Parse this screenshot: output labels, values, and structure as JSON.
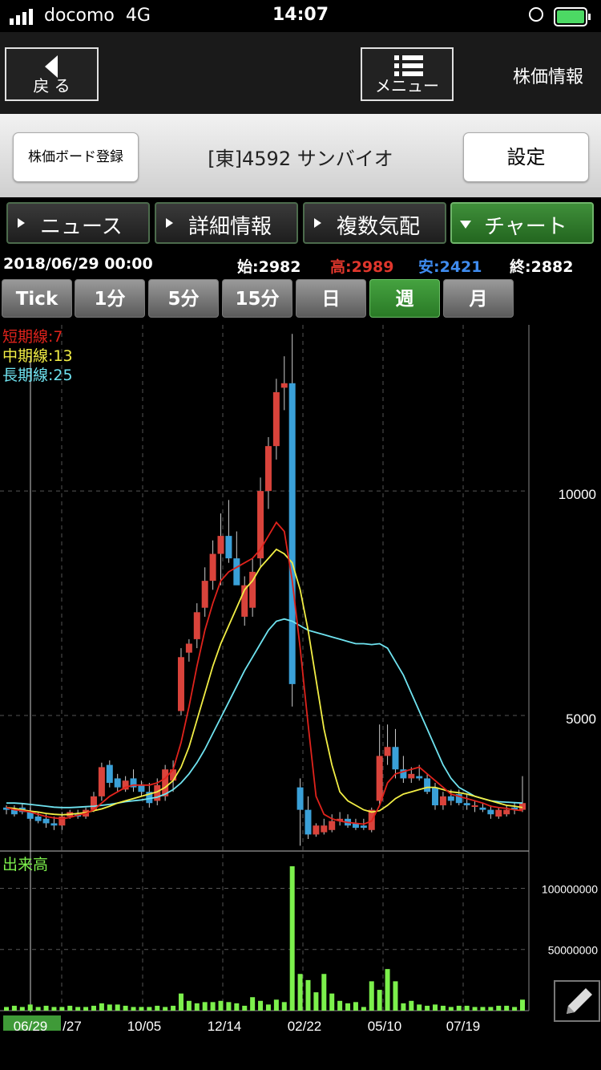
{
  "status_bar": {
    "carrier": "docomo",
    "network": "4G",
    "time": "14:07"
  },
  "nav": {
    "back_label": "戻 る",
    "menu_label": "メニュー",
    "title": "株価情報"
  },
  "stock": {
    "register_label": "株価ボード登録",
    "name": "[東]4592 サンバイオ",
    "settings_label": "設定"
  },
  "tabs": [
    {
      "label": "ニュース",
      "active": false
    },
    {
      "label": "詳細情報",
      "active": false
    },
    {
      "label": "複数気配",
      "active": false
    },
    {
      "label": "チャート",
      "active": true
    }
  ],
  "ohlc": {
    "date": "2018/06/29 00:00",
    "open": "始:2982",
    "high": "高:2989",
    "low": "安:2421",
    "close": "終:2882"
  },
  "periods": [
    {
      "label": "Tick",
      "active": false
    },
    {
      "label": "1分",
      "active": false
    },
    {
      "label": "5分",
      "active": false
    },
    {
      "label": "15分",
      "active": false
    },
    {
      "label": "日",
      "active": false
    },
    {
      "label": "週",
      "active": true
    },
    {
      "label": "月",
      "active": false
    }
  ],
  "colors": {
    "up": "#d9433b",
    "down": "#3aa0d8",
    "ma_short": "#e0231c",
    "ma_mid": "#f2ee45",
    "ma_long": "#6fe3f0",
    "volume": "#7cf04c",
    "accent": "#3f9a38"
  },
  "chart_data": {
    "type": "candlestick",
    "legend": [
      "短期線:7",
      "中期線:13",
      "長期線:25"
    ],
    "y_ticks": [
      10000,
      5000
    ],
    "ylim": [
      2000,
      13700
    ],
    "x_ticks": [
      "06/29",
      "/27",
      "10/05",
      "12/14",
      "02/22",
      "05/10",
      "07/19"
    ],
    "candles": [
      {
        "o": 2950,
        "h": 3000,
        "l": 2800,
        "c": 2900
      },
      {
        "o": 2900,
        "h": 3000,
        "l": 2750,
        "c": 2800
      },
      {
        "o": 2950,
        "h": 3050,
        "l": 2800,
        "c": 2850
      },
      {
        "o": 2850,
        "h": 2950,
        "l": 2650,
        "c": 2700
      },
      {
        "o": 2750,
        "h": 2850,
        "l": 2600,
        "c": 2650
      },
      {
        "o": 2700,
        "h": 2800,
        "l": 2500,
        "c": 2600
      },
      {
        "o": 2600,
        "h": 2750,
        "l": 2450,
        "c": 2550
      },
      {
        "o": 2550,
        "h": 2850,
        "l": 2450,
        "c": 2750
      },
      {
        "o": 2750,
        "h": 2900,
        "l": 2700,
        "c": 2850
      },
      {
        "o": 2800,
        "h": 2900,
        "l": 2700,
        "c": 2750
      },
      {
        "o": 2750,
        "h": 2950,
        "l": 2700,
        "c": 2900
      },
      {
        "o": 2900,
        "h": 3300,
        "l": 2850,
        "c": 3200
      },
      {
        "o": 3200,
        "h": 3950,
        "l": 3100,
        "c": 3850
      },
      {
        "o": 3900,
        "h": 4000,
        "l": 3400,
        "c": 3500
      },
      {
        "o": 3600,
        "h": 3700,
        "l": 3300,
        "c": 3400
      },
      {
        "o": 3350,
        "h": 3650,
        "l": 3300,
        "c": 3550
      },
      {
        "o": 3600,
        "h": 3800,
        "l": 3300,
        "c": 3400
      },
      {
        "o": 3450,
        "h": 3550,
        "l": 3200,
        "c": 3300
      },
      {
        "o": 3300,
        "h": 3500,
        "l": 2950,
        "c": 3050
      },
      {
        "o": 3100,
        "h": 3600,
        "l": 3000,
        "c": 3450
      },
      {
        "o": 3200,
        "h": 3900,
        "l": 3100,
        "c": 3800
      },
      {
        "o": 3550,
        "h": 4000,
        "l": 3300,
        "c": 3800
      },
      {
        "o": 5100,
        "h": 6500,
        "l": 5000,
        "c": 6300
      },
      {
        "o": 6400,
        "h": 6700,
        "l": 6200,
        "c": 6600
      },
      {
        "o": 6700,
        "h": 7500,
        "l": 6500,
        "c": 7300
      },
      {
        "o": 7400,
        "h": 8300,
        "l": 7200,
        "c": 8000
      },
      {
        "o": 8000,
        "h": 8900,
        "l": 7800,
        "c": 8600
      },
      {
        "o": 8600,
        "h": 9500,
        "l": 7900,
        "c": 9000
      },
      {
        "o": 9000,
        "h": 9800,
        "l": 8400,
        "c": 8500
      },
      {
        "o": 8500,
        "h": 9100,
        "l": 8000,
        "c": 7900
      },
      {
        "o": 7200,
        "h": 8100,
        "l": 7000,
        "c": 7900
      },
      {
        "o": 7400,
        "h": 8500,
        "l": 7200,
        "c": 8200
      },
      {
        "o": 8500,
        "h": 10300,
        "l": 8300,
        "c": 10000
      },
      {
        "o": 10000,
        "h": 11200,
        "l": 9600,
        "c": 11000
      },
      {
        "o": 11000,
        "h": 12500,
        "l": 10700,
        "c": 12200
      },
      {
        "o": 12300,
        "h": 13000,
        "l": 11800,
        "c": 12400
      },
      {
        "o": 12400,
        "h": 13500,
        "l": 5200,
        "c": 5700
      },
      {
        "o": 3400,
        "h": 3600,
        "l": 2100,
        "c": 2900
      },
      {
        "o": 2900,
        "h": 3200,
        "l": 2250,
        "c": 2350
      },
      {
        "o": 2350,
        "h": 2600,
        "l": 2300,
        "c": 2550
      },
      {
        "o": 2400,
        "h": 2700,
        "l": 2350,
        "c": 2550
      },
      {
        "o": 2450,
        "h": 2800,
        "l": 2400,
        "c": 2650
      },
      {
        "o": 2650,
        "h": 2850,
        "l": 2550,
        "c": 2700
      },
      {
        "o": 2700,
        "h": 2800,
        "l": 2500,
        "c": 2550
      },
      {
        "o": 2600,
        "h": 2700,
        "l": 2450,
        "c": 2500
      },
      {
        "o": 2550,
        "h": 2700,
        "l": 2450,
        "c": 2500
      },
      {
        "o": 2450,
        "h": 2950,
        "l": 2400,
        "c": 2900
      },
      {
        "o": 3100,
        "h": 4800,
        "l": 3000,
        "c": 4100
      },
      {
        "o": 4100,
        "h": 4800,
        "l": 3900,
        "c": 4300
      },
      {
        "o": 4300,
        "h": 4700,
        "l": 3600,
        "c": 3800
      },
      {
        "o": 3800,
        "h": 4100,
        "l": 3500,
        "c": 3600
      },
      {
        "o": 3600,
        "h": 3850,
        "l": 3500,
        "c": 3700
      },
      {
        "o": 3650,
        "h": 3900,
        "l": 3550,
        "c": 3600
      },
      {
        "o": 3600,
        "h": 3700,
        "l": 3250,
        "c": 3300
      },
      {
        "o": 3400,
        "h": 3500,
        "l": 2900,
        "c": 3000
      },
      {
        "o": 3000,
        "h": 3300,
        "l": 2900,
        "c": 3200
      },
      {
        "o": 3200,
        "h": 3350,
        "l": 3000,
        "c": 3100
      },
      {
        "o": 3250,
        "h": 3350,
        "l": 3000,
        "c": 3050
      },
      {
        "o": 3050,
        "h": 3250,
        "l": 2900,
        "c": 3000
      },
      {
        "o": 3000,
        "h": 3100,
        "l": 2850,
        "c": 3000
      },
      {
        "o": 2950,
        "h": 3050,
        "l": 2850,
        "c": 2900
      },
      {
        "o": 2900,
        "h": 3000,
        "l": 2700,
        "c": 2800
      },
      {
        "o": 2750,
        "h": 2950,
        "l": 2700,
        "c": 2900
      },
      {
        "o": 2800,
        "h": 3000,
        "l": 2750,
        "c": 2900
      },
      {
        "o": 2950,
        "h": 3050,
        "l": 2800,
        "c": 2900
      },
      {
        "o": 2900,
        "h": 3650,
        "l": 2850,
        "c": 3050
      }
    ],
    "ma_short": [
      2950,
      2900,
      2880,
      2850,
      2800,
      2750,
      2720,
      2700,
      2730,
      2780,
      2820,
      2900,
      3050,
      3200,
      3300,
      3400,
      3450,
      3450,
      3450,
      3500,
      3600,
      3800,
      4400,
      5200,
      6100,
      6900,
      7500,
      8000,
      8200,
      8300,
      8400,
      8500,
      8700,
      9000,
      9300,
      9100,
      8000,
      6500,
      4800,
      3200,
      2800,
      2700,
      2650,
      2620,
      2600,
      2580,
      2650,
      3000,
      3500,
      3700,
      3750,
      3800,
      3850,
      3700,
      3550,
      3400,
      3250,
      3200,
      3150,
      3100,
      3050,
      2980,
      2950,
      2930,
      2900,
      2880
    ],
    "ma_mid": [
      2950,
      2930,
      2900,
      2870,
      2850,
      2820,
      2800,
      2790,
      2800,
      2820,
      2840,
      2880,
      2920,
      2980,
      3050,
      3100,
      3150,
      3200,
      3250,
      3300,
      3400,
      3550,
      3850,
      4300,
      4900,
      5500,
      6100,
      6600,
      7000,
      7400,
      7800,
      8000,
      8300,
      8500,
      8700,
      8600,
      8400,
      7800,
      6900,
      5800,
      4700,
      3900,
      3300,
      3100,
      3000,
      2900,
      2850,
      2880,
      3000,
      3150,
      3250,
      3300,
      3350,
      3400,
      3400,
      3350,
      3300,
      3280,
      3250,
      3200,
      3150,
      3100,
      3050,
      3000,
      2980,
      2950
    ],
    "ma_long": [
      3050,
      3050,
      3040,
      3020,
      3000,
      2980,
      2960,
      2950,
      2950,
      2960,
      2970,
      2980,
      3000,
      3020,
      3050,
      3080,
      3100,
      3120,
      3150,
      3180,
      3250,
      3350,
      3500,
      3700,
      3950,
      4250,
      4600,
      4950,
      5300,
      5650,
      6000,
      6300,
      6600,
      6900,
      7100,
      7150,
      7100,
      7000,
      6900,
      6850,
      6800,
      6750,
      6700,
      6650,
      6600,
      6600,
      6580,
      6600,
      6500,
      6200,
      5900,
      5500,
      5100,
      4700,
      4300,
      3900,
      3600,
      3400,
      3300,
      3200,
      3150,
      3100,
      3080,
      3070,
      3060,
      3050
    ],
    "volume": {
      "label": "出来高",
      "y_ticks": [
        100000000,
        50000000
      ],
      "ylim": [
        0,
        118000000
      ],
      "values": [
        3000000,
        4000000,
        3000000,
        5000000,
        3000000,
        4000000,
        3000000,
        3000000,
        4000000,
        3000000,
        3000000,
        4000000,
        6000000,
        5000000,
        5000000,
        4000000,
        3000000,
        3000000,
        3000000,
        4000000,
        3000000,
        4000000,
        14000000,
        8000000,
        6000000,
        7000000,
        7000000,
        8000000,
        7000000,
        6000000,
        4000000,
        11000000,
        8000000,
        5000000,
        9000000,
        7000000,
        118000000,
        30000000,
        25000000,
        15000000,
        30000000,
        14000000,
        8000000,
        6000000,
        7000000,
        3000000,
        24000000,
        17000000,
        34000000,
        24000000,
        6000000,
        8000000,
        5000000,
        4000000,
        5000000,
        4000000,
        3000000,
        4000000,
        4000000,
        3000000,
        3000000,
        3000000,
        4000000,
        4000000,
        3000000,
        9000000
      ]
    }
  }
}
